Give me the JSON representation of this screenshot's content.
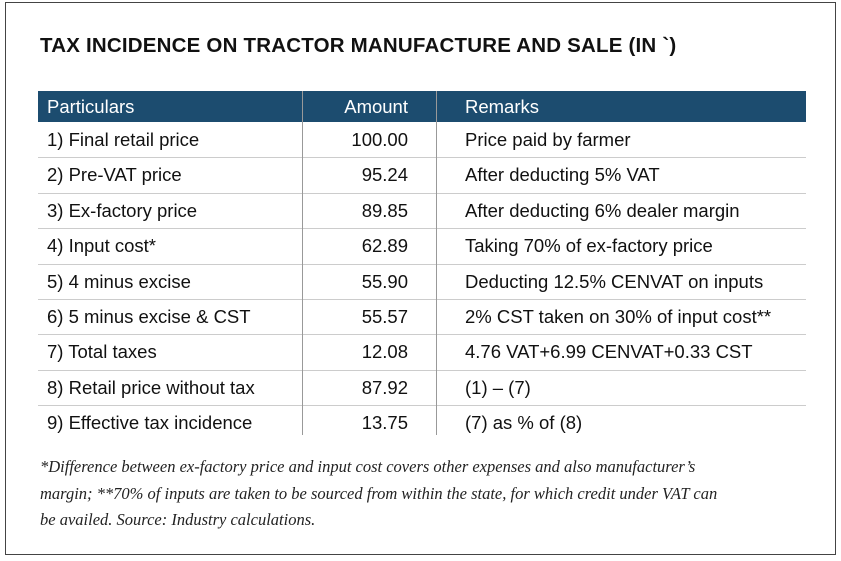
{
  "title": "TAX INCIDENCE ON TRACTOR MANUFACTURE AND SALE (IN `)",
  "table": {
    "header": [
      "Particulars",
      "Amount",
      "Remarks"
    ],
    "rows": [
      [
        "1) Final retail price",
        "100.00",
        "Price paid by farmer"
      ],
      [
        "2) Pre-VAT price",
        "95.24",
        "After deducting 5% VAT"
      ],
      [
        "3) Ex-factory price",
        "89.85",
        "After deducting 6% dealer margin"
      ],
      [
        "4) Input cost*",
        "62.89",
        "Taking 70% of ex-factory price"
      ],
      [
        "5) 4 minus excise",
        "55.90",
        "Deducting 12.5% CENVAT on inputs"
      ],
      [
        "6) 5 minus excise & CST",
        "55.57",
        "2% CST taken on 30% of input cost**"
      ],
      [
        "7) Total taxes",
        "12.08",
        "4.76 VAT+6.99 CENVAT+0.33 CST"
      ],
      [
        "8) Retail price without tax",
        "87.92",
        "(1) – (7)"
      ],
      [
        "9) Effective tax incidence",
        "13.75",
        "(7) as % of (8)"
      ]
    ]
  },
  "footnote": [
    "*Difference between ex-factory price and input cost covers other expenses and also manufacturer’s",
    "margin; **70% of inputs are taken to be sourced from within the state, for which credit under VAT can",
    "be availed.  Source: Industry calculations."
  ]
}
